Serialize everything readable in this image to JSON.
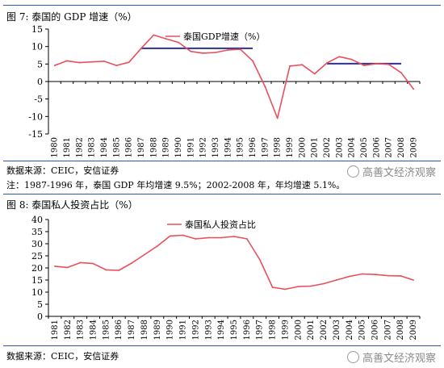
{
  "chart_data": [
    {
      "type": "line",
      "title": "图 7: 泰国的 GDP 增速（%）",
      "legend": "泰国GDP增速（%）",
      "legend_position": "top-center",
      "categories": [
        "1980",
        "1981",
        "1982",
        "1983",
        "1984",
        "1985",
        "1986",
        "1987",
        "1988",
        "1989",
        "1990",
        "1991",
        "1992",
        "1993",
        "1994",
        "1995",
        "1996",
        "1997",
        "1998",
        "1999",
        "2000",
        "2001",
        "2002",
        "2003",
        "2004",
        "2005",
        "2006",
        "2007",
        "2008",
        "2009"
      ],
      "series": [
        {
          "name": "泰国GDP增速（%）",
          "color": "#e8505b",
          "values": [
            4.6,
            5.9,
            5.4,
            5.6,
            5.8,
            4.6,
            5.5,
            9.5,
            13.3,
            12.2,
            11.2,
            8.6,
            8.1,
            8.3,
            9.0,
            9.2,
            5.9,
            -1.4,
            -10.5,
            4.4,
            4.8,
            2.2,
            5.3,
            7.1,
            6.3,
            4.6,
            5.1,
            4.9,
            2.5,
            -2.2
          ]
        }
      ],
      "reference_lines": [
        {
          "label": "1987-1996 年平均",
          "from": "1987",
          "to": "1996",
          "value": 9.5,
          "color": "#2e3192"
        },
        {
          "label": "2002-2008 年平均",
          "from": "2002",
          "to": "2008",
          "value": 5.1,
          "color": "#2e3192"
        }
      ],
      "ylim": [
        -15,
        15
      ],
      "yticks": [
        15,
        10,
        5,
        0,
        -5,
        -10,
        -15
      ],
      "xlabel": "",
      "ylabel": "",
      "grid": false
    },
    {
      "type": "line",
      "title": "图 8: 泰国私人投资占比（%）",
      "legend": "泰国私人投资占比",
      "legend_position": "top-center",
      "categories": [
        "1981",
        "1982",
        "1983",
        "1984",
        "1985",
        "1986",
        "1987",
        "1988",
        "1989",
        "1990",
        "1991",
        "1992",
        "1993",
        "1994",
        "1995",
        "1996",
        "1997",
        "1998",
        "1999",
        "2000",
        "2001",
        "2002",
        "2003",
        "2004",
        "2005",
        "2006",
        "2007",
        "2008",
        "2009"
      ],
      "series": [
        {
          "name": "泰国私人投资占比",
          "color": "#e8505b",
          "values": [
            20.7,
            20.2,
            22.2,
            21.8,
            19.2,
            19.0,
            22.0,
            25.5,
            29.0,
            33.2,
            33.5,
            32.0,
            32.5,
            32.5,
            33.0,
            32.0,
            23.5,
            12.0,
            11.2,
            12.3,
            12.5,
            13.5,
            15.0,
            16.5,
            17.5,
            17.3,
            16.8,
            16.7,
            15.0
          ]
        }
      ],
      "ylim": [
        0,
        40
      ],
      "yticks": [
        40,
        35,
        30,
        25,
        20,
        15,
        10,
        5,
        0
      ],
      "xlabel": "",
      "ylabel": "",
      "grid": false
    }
  ],
  "sources": {
    "fig7": "数据来源：CEIC，安信证券",
    "fig7_note": "注：1987-1996 年，泰国 GDP 年均增速 9.5%；2002-2008 年，年均增速 5.1%。",
    "fig8": "数据来源：CEIC，安信证券"
  },
  "watermark": {
    "text": "高善文经济观察",
    "icon": "wechat-icon"
  },
  "colors": {
    "series": "#e8505b",
    "reference": "#2e3192",
    "rule": "#2b5ba8",
    "axis": "#000000"
  }
}
